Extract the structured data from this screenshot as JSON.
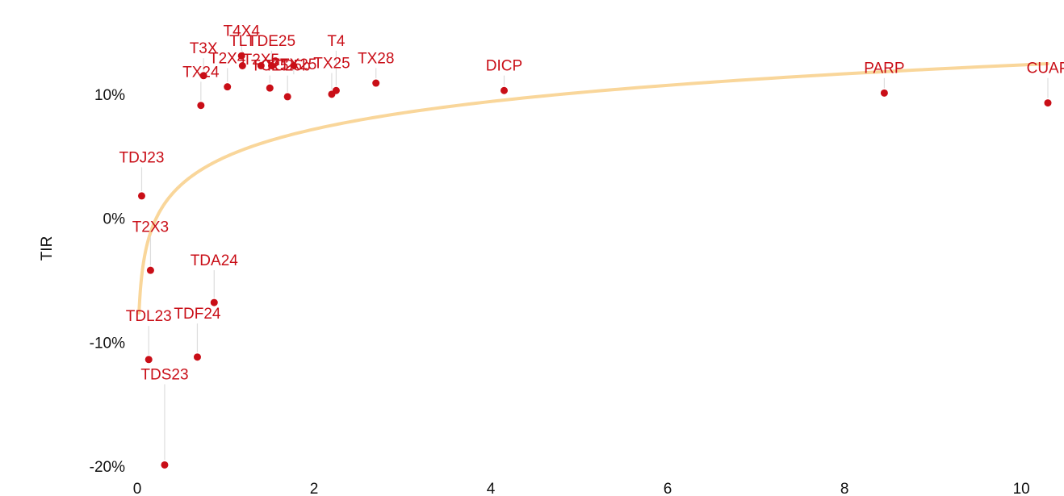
{
  "chart_data": {
    "type": "scatter",
    "title": "",
    "xlabel": "",
    "ylabel": "TIR",
    "xlim": [
      0,
      10.3
    ],
    "ylim": [
      -0.2,
      0.15
    ],
    "x_ticks": [
      0,
      2,
      4,
      6,
      8,
      10
    ],
    "y_ticks": [
      -0.2,
      -0.1,
      0,
      0.1
    ],
    "y_tick_labels": [
      "-20%",
      "-10%",
      "0%",
      "10%"
    ],
    "grid": false,
    "legend": "none",
    "colors": {
      "points": "#c90e17",
      "labels": "#c90e17",
      "trend": "#f9d69a",
      "leader": "#dddddd"
    },
    "points": [
      {
        "label": "TX24",
        "x": 0.72,
        "y": 0.091,
        "label_y": 0.114
      },
      {
        "label": "T3X",
        "x": 0.75,
        "y": 0.115,
        "label_y": 0.133
      },
      {
        "label": "T2X4",
        "x": 1.02,
        "y": 0.106,
        "label_y": 0.125
      },
      {
        "label": "T4X4",
        "x": 1.18,
        "y": 0.131,
        "label_y": 0.147
      },
      {
        "label": "TLT",
        "x": 1.19,
        "y": 0.123,
        "label_y": 0.139
      },
      {
        "label": "T2X5",
        "x": 1.4,
        "y": 0.123,
        "label_y": 0.124
      },
      {
        "label": "TDE25",
        "x": 1.52,
        "y": 0.123,
        "label_y": 0.139
      },
      {
        "label": "TC25",
        "x": 1.5,
        "y": 0.105,
        "label_y": 0.119
      },
      {
        "label": "FTX25",
        "x": 1.77,
        "y": 0.123,
        "label_y": 0.12
      },
      {
        "label": "TX25",
        "x": 2.2,
        "y": 0.1,
        "label_y": 0.121
      },
      {
        "label": "T4",
        "x": 2.25,
        "y": 0.103,
        "label_y": 0.139
      },
      {
        "label": "TC25b",
        "x": 1.7,
        "y": 0.098,
        "label_y": 0.119
      },
      {
        "label": "TX28",
        "x": 2.7,
        "y": 0.109,
        "label_y": 0.125
      },
      {
        "label": "DICP",
        "x": 4.15,
        "y": 0.103,
        "label_y": 0.119
      },
      {
        "label": "PARP",
        "x": 8.45,
        "y": 0.101,
        "label_y": 0.117
      },
      {
        "label": "CUAP",
        "x": 10.3,
        "y": 0.093,
        "label_y": 0.117
      },
      {
        "label": "TDJ23",
        "x": 0.05,
        "y": 0.018,
        "label_y": 0.045
      },
      {
        "label": "T2X3",
        "x": 0.15,
        "y": -0.042,
        "label_y": -0.011
      },
      {
        "label": "TDA24",
        "x": 0.87,
        "y": -0.068,
        "label_y": -0.038
      },
      {
        "label": "TDL23",
        "x": 0.13,
        "y": -0.114,
        "label_y": -0.083
      },
      {
        "label": "TDF24",
        "x": 0.68,
        "y": -0.112,
        "label_y": -0.081
      },
      {
        "label": "TDS23",
        "x": 0.31,
        "y": -0.199,
        "label_y": -0.13
      }
    ],
    "trendline": {
      "type": "logarithmic",
      "a": 0.0495,
      "b": 0.0322,
      "x_start": 0.02,
      "x_end": 10.3
    }
  }
}
